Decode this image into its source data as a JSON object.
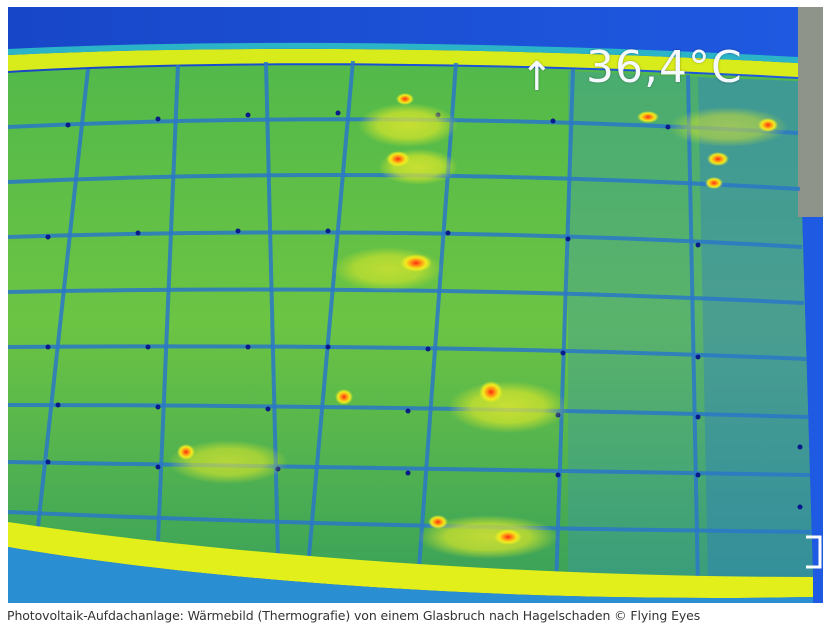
{
  "image": {
    "description_icon": "thermal-image-photovoltaic-roof",
    "temperature_readout": "36,4°C",
    "direction_arrow_glyph": "↑",
    "colors": {
      "sky_blue": "#1a4fd6",
      "panel_green": "#3fa84a",
      "frame_yellow": "#e6f018",
      "hotspot_red": "#e8341c"
    }
  },
  "caption": {
    "text": "Photovoltaik-Aufdachanlage: Wärmebild (Thermografie) von einem Glasbruch nach Hagelschaden © Flying Eyes"
  }
}
